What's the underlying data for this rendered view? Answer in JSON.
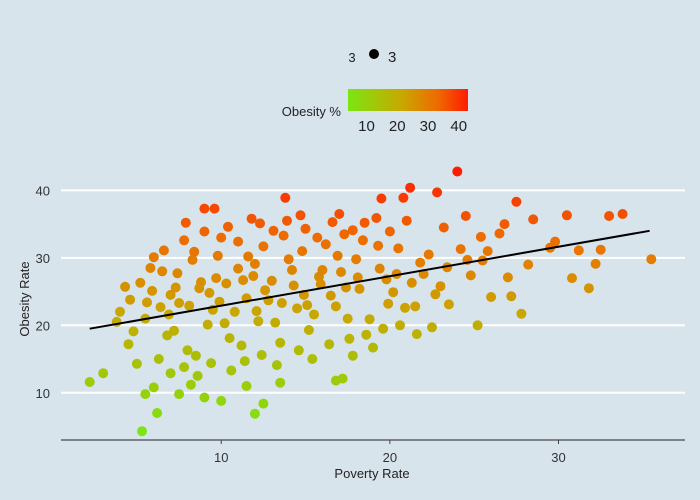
{
  "chart_data": {
    "type": "scatter",
    "xlabel": "Poverty Rate",
    "ylabel": "Obesity Rate",
    "xlim": [
      0.5,
      37.5
    ],
    "ylim": [
      3,
      44.5
    ],
    "x_ticks": [
      10,
      20,
      30
    ],
    "y_ticks": [
      10,
      20,
      30,
      40
    ],
    "grid": "horizontal major lines",
    "size_legend": {
      "label": "3",
      "value": "3"
    },
    "color_legend": {
      "title": "Obesity %",
      "ticks": [
        10,
        20,
        30,
        40
      ],
      "range": [
        4,
        43
      ],
      "colors": [
        "#7be612",
        "#c8a800",
        "#ee6a00",
        "#ff1a00"
      ]
    },
    "trend_line": {
      "x": [
        2.2,
        35.4
      ],
      "y": [
        19.5,
        34.0
      ]
    },
    "series": [
      {
        "values": [
          [
            5.3,
            4.3
          ],
          [
            6.2,
            7.0
          ],
          [
            10.0,
            8.8
          ],
          [
            12.0,
            6.9
          ],
          [
            12.5,
            8.4
          ],
          [
            2.2,
            11.6
          ],
          [
            3.0,
            12.9
          ],
          [
            5.5,
            9.8
          ],
          [
            6.0,
            10.8
          ],
          [
            7.5,
            9.8
          ],
          [
            8.2,
            11.2
          ],
          [
            9.0,
            9.3
          ],
          [
            11.5,
            11.0
          ],
          [
            13.5,
            11.5
          ],
          [
            16.8,
            11.8
          ],
          [
            17.2,
            12.1
          ],
          [
            17.8,
            15.5
          ],
          [
            4.5,
            17.2
          ],
          [
            4.8,
            19.1
          ],
          [
            4.0,
            22.0
          ],
          [
            4.3,
            25.7
          ],
          [
            5.5,
            21.0
          ],
          [
            5.8,
            28.5
          ],
          [
            6.5,
            28.0
          ],
          [
            7.0,
            24.5
          ],
          [
            7.2,
            19.2
          ],
          [
            7.8,
            32.6
          ],
          [
            8.5,
            15.5
          ],
          [
            9.0,
            37.3
          ],
          [
            9.6,
            37.3
          ],
          [
            8.8,
            26.4
          ],
          [
            9.5,
            22.3
          ],
          [
            10.0,
            33.0
          ],
          [
            10.5,
            18.1
          ],
          [
            11.0,
            28.4
          ],
          [
            11.5,
            24.0
          ],
          [
            11.8,
            35.8
          ],
          [
            12.2,
            20.6
          ],
          [
            12.5,
            31.7
          ],
          [
            13.0,
            26.6
          ],
          [
            13.5,
            17.4
          ],
          [
            13.8,
            38.9
          ],
          [
            14.0,
            29.8
          ],
          [
            14.5,
            22.5
          ],
          [
            15.0,
            34.3
          ],
          [
            15.2,
            19.3
          ],
          [
            15.8,
            27.2
          ],
          [
            16.2,
            32.0
          ],
          [
            16.5,
            24.4
          ],
          [
            17.0,
            36.5
          ],
          [
            17.5,
            21.0
          ],
          [
            18.0,
            29.8
          ],
          [
            18.5,
            35.2
          ],
          [
            19.0,
            16.7
          ],
          [
            19.5,
            38.8
          ],
          [
            19.8,
            26.8
          ],
          [
            20.5,
            31.4
          ],
          [
            20.8,
            38.9
          ],
          [
            21.2,
            40.4
          ],
          [
            21.5,
            22.8
          ],
          [
            22.0,
            27.6
          ],
          [
            22.5,
            19.7
          ],
          [
            22.8,
            39.7
          ],
          [
            23.2,
            34.5
          ],
          [
            23.5,
            23.1
          ],
          [
            24.0,
            42.8
          ],
          [
            24.2,
            31.3
          ],
          [
            24.8,
            27.4
          ],
          [
            25.2,
            20.0
          ],
          [
            25.5,
            29.6
          ],
          [
            26.0,
            24.2
          ],
          [
            26.5,
            33.6
          ],
          [
            27.0,
            27.1
          ],
          [
            27.2,
            24.3
          ],
          [
            27.5,
            38.3
          ],
          [
            27.8,
            21.7
          ],
          [
            28.2,
            29.0
          ],
          [
            28.5,
            35.7
          ],
          [
            29.5,
            31.5
          ],
          [
            29.8,
            32.4
          ],
          [
            30.5,
            36.3
          ],
          [
            30.8,
            27.0
          ],
          [
            31.2,
            31.1
          ],
          [
            31.8,
            25.5
          ],
          [
            32.2,
            29.1
          ],
          [
            32.5,
            31.2
          ],
          [
            33.0,
            36.2
          ],
          [
            33.8,
            36.5
          ],
          [
            35.5,
            29.8
          ],
          [
            6.8,
            18.5
          ],
          [
            7.5,
            23.3
          ],
          [
            8.0,
            16.3
          ],
          [
            8.3,
            29.7
          ],
          [
            9.2,
            20.1
          ],
          [
            10.3,
            26.2
          ],
          [
            10.8,
            22.0
          ],
          [
            11.2,
            17.0
          ],
          [
            12.0,
            29.1
          ],
          [
            12.8,
            23.7
          ],
          [
            13.2,
            20.4
          ],
          [
            13.7,
            33.3
          ],
          [
            14.3,
            25.9
          ],
          [
            14.8,
            31.0
          ],
          [
            15.5,
            21.6
          ],
          [
            16.0,
            28.2
          ],
          [
            16.8,
            22.8
          ],
          [
            17.3,
            33.5
          ],
          [
            18.2,
            25.4
          ],
          [
            18.8,
            20.9
          ],
          [
            19.3,
            31.8
          ],
          [
            20.2,
            24.9
          ],
          [
            21.0,
            35.5
          ],
          [
            21.8,
            29.3
          ],
          [
            23.0,
            25.8
          ],
          [
            24.5,
            36.2
          ],
          [
            25.8,
            31.0
          ],
          [
            26.8,
            35.0
          ],
          [
            5.0,
            14.3
          ],
          [
            6.3,
            15.0
          ],
          [
            7.0,
            12.9
          ],
          [
            7.8,
            13.8
          ],
          [
            8.6,
            12.5
          ],
          [
            9.4,
            14.4
          ],
          [
            10.6,
            13.3
          ],
          [
            11.4,
            14.7
          ],
          [
            12.4,
            15.6
          ],
          [
            13.3,
            14.1
          ],
          [
            14.6,
            16.3
          ],
          [
            15.4,
            15.0
          ],
          [
            16.4,
            17.2
          ],
          [
            17.6,
            18.0
          ],
          [
            18.6,
            18.6
          ],
          [
            19.6,
            19.5
          ],
          [
            20.6,
            20.0
          ],
          [
            21.6,
            18.7
          ],
          [
            4.6,
            23.8
          ],
          [
            5.2,
            26.3
          ],
          [
            6.0,
            30.1
          ],
          [
            6.6,
            31.1
          ],
          [
            7.4,
            27.7
          ],
          [
            8.4,
            30.9
          ],
          [
            9.0,
            33.9
          ],
          [
            9.8,
            30.3
          ],
          [
            10.4,
            34.6
          ],
          [
            11.0,
            32.4
          ],
          [
            11.6,
            30.2
          ],
          [
            12.3,
            35.1
          ],
          [
            13.1,
            34.0
          ],
          [
            13.9,
            35.5
          ],
          [
            14.7,
            36.3
          ],
          [
            15.7,
            33.0
          ],
          [
            16.6,
            35.3
          ],
          [
            17.8,
            34.1
          ],
          [
            18.4,
            32.6
          ],
          [
            19.2,
            35.9
          ],
          [
            20.0,
            33.9
          ],
          [
            3.8,
            20.5
          ],
          [
            5.6,
            23.4
          ],
          [
            6.9,
            21.6
          ],
          [
            8.1,
            22.9
          ],
          [
            9.3,
            24.8
          ],
          [
            10.2,
            20.3
          ],
          [
            11.3,
            26.7
          ],
          [
            12.6,
            25.2
          ],
          [
            13.6,
            23.3
          ],
          [
            14.9,
            24.5
          ],
          [
            15.9,
            26.1
          ],
          [
            17.1,
            27.9
          ],
          [
            18.1,
            27.1
          ],
          [
            19.4,
            28.4
          ],
          [
            20.4,
            27.6
          ],
          [
            21.3,
            26.3
          ],
          [
            22.3,
            30.5
          ],
          [
            23.4,
            28.6
          ],
          [
            24.6,
            29.7
          ],
          [
            25.4,
            33.1
          ],
          [
            7.9,
            35.2
          ],
          [
            9.7,
            27.0
          ],
          [
            11.9,
            27.3
          ],
          [
            14.2,
            28.2
          ],
          [
            16.9,
            30.3
          ],
          [
            19.9,
            23.2
          ],
          [
            22.7,
            24.6
          ],
          [
            5.9,
            25.1
          ],
          [
            6.4,
            22.7
          ],
          [
            7.3,
            25.6
          ],
          [
            8.7,
            25.5
          ],
          [
            9.9,
            23.5
          ],
          [
            12.1,
            22.1
          ],
          [
            15.1,
            23.0
          ],
          [
            17.4,
            25.6
          ],
          [
            20.9,
            22.6
          ]
        ]
      }
    ]
  }
}
